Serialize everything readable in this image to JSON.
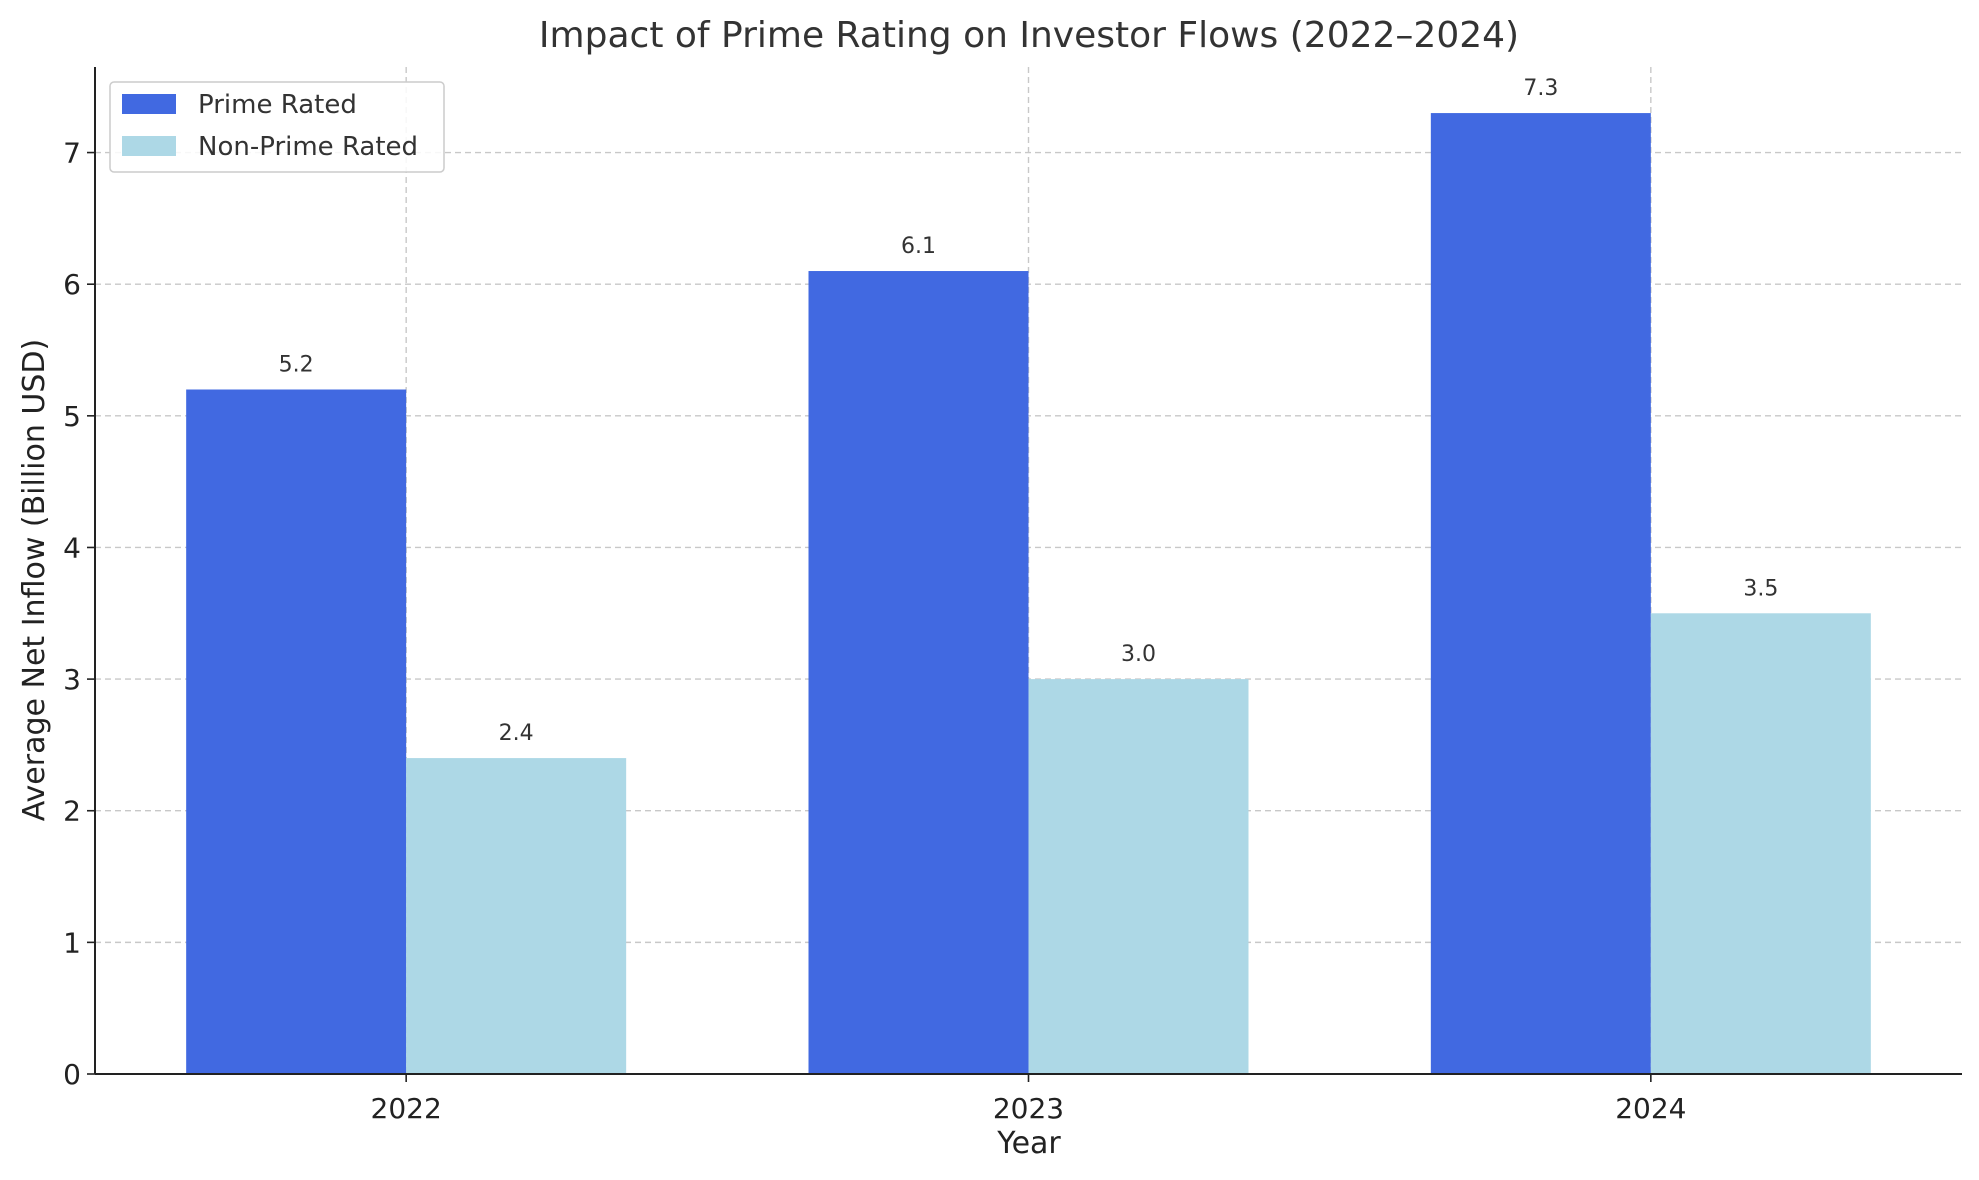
{
  "chart_data": {
    "type": "bar",
    "title": "Impact of Prime Rating on Investor Flows (2022–2024)",
    "xlabel": "Year",
    "ylabel": "Average Net Inflow (Billion USD)",
    "categories": [
      "2022",
      "2023",
      "2024"
    ],
    "series": [
      {
        "name": "Prime Rated",
        "color": "#4169e1",
        "values": [
          5.2,
          6.1,
          7.3
        ],
        "labels": [
          "5.2",
          "6.1",
          "7.3"
        ]
      },
      {
        "name": "Non-Prime Rated",
        "color": "#add8e6",
        "values": [
          2.4,
          3.0,
          3.5
        ],
        "labels": [
          "2.4",
          "3.0",
          "3.5"
        ]
      }
    ],
    "ylim": [
      0,
      7.65
    ],
    "yticks": [
      0,
      1,
      2,
      3,
      4,
      5,
      6,
      7
    ],
    "ytick_labels": [
      "0",
      "1",
      "2",
      "3",
      "4",
      "5",
      "6",
      "7"
    ],
    "grid": true,
    "legend_position": "top-left"
  }
}
